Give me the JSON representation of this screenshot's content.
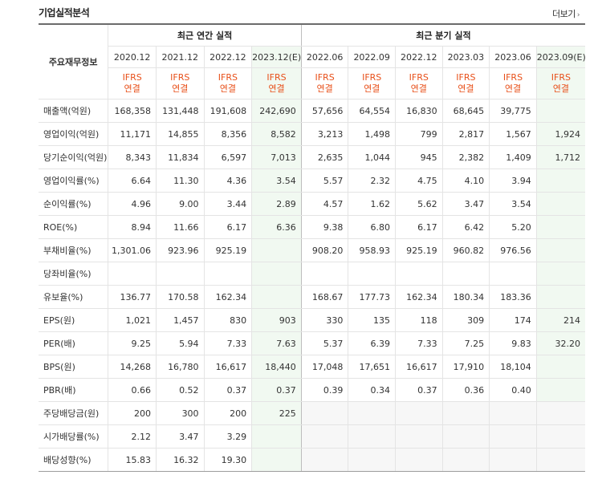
{
  "header": {
    "title": "기업실적분석",
    "more_label": "더보기"
  },
  "table": {
    "row_header": "주요재무정보",
    "annual_title": "최근 연간 실적",
    "quarter_title": "최근 분기 실적",
    "annual_periods": [
      "2020.12",
      "2021.12",
      "2022.12",
      "2023.12(E)"
    ],
    "quarter_periods": [
      "2022.06",
      "2022.09",
      "2022.12",
      "2023.03",
      "2023.06",
      "2023.09(E)"
    ],
    "ifrs_top": "IFRS",
    "ifrs_bottom": "연결",
    "rows": [
      {
        "label": "매출액(억원)",
        "values": [
          "168,358",
          "131,448",
          "191,608",
          "242,690",
          "57,656",
          "64,554",
          "16,830",
          "68,645",
          "39,775",
          ""
        ]
      },
      {
        "label": "영업이익(억원)",
        "values": [
          "11,171",
          "14,855",
          "8,356",
          "8,582",
          "3,213",
          "1,498",
          "799",
          "2,817",
          "1,567",
          "1,924"
        ]
      },
      {
        "label": "당기순이익(억원)",
        "values": [
          "8,343",
          "11,834",
          "6,597",
          "7,013",
          "2,635",
          "1,044",
          "945",
          "2,382",
          "1,409",
          "1,712"
        ]
      },
      {
        "label": "영업이익률(%)",
        "values": [
          "6.64",
          "11.30",
          "4.36",
          "3.54",
          "5.57",
          "2.32",
          "4.75",
          "4.10",
          "3.94",
          ""
        ]
      },
      {
        "label": "순이익률(%)",
        "values": [
          "4.96",
          "9.00",
          "3.44",
          "2.89",
          "4.57",
          "1.62",
          "5.62",
          "3.47",
          "3.54",
          ""
        ]
      },
      {
        "label": "ROE(%)",
        "values": [
          "8.94",
          "11.66",
          "6.17",
          "6.36",
          "9.38",
          "6.80",
          "6.17",
          "6.42",
          "5.20",
          ""
        ]
      },
      {
        "label": "부채비율(%)",
        "values": [
          "1,301.06",
          "923.96",
          "925.19",
          "",
          "908.20",
          "958.93",
          "925.19",
          "960.82",
          "976.56",
          ""
        ]
      },
      {
        "label": "당좌비율(%)",
        "values": [
          "",
          "",
          "",
          "",
          "",
          "",
          "",
          "",
          "",
          ""
        ]
      },
      {
        "label": "유보율(%)",
        "values": [
          "136.77",
          "170.58",
          "162.34",
          "",
          "168.67",
          "177.73",
          "162.34",
          "180.34",
          "183.36",
          ""
        ]
      },
      {
        "label": "EPS(원)",
        "values": [
          "1,021",
          "1,457",
          "830",
          "903",
          "330",
          "135",
          "118",
          "309",
          "174",
          "214"
        ]
      },
      {
        "label": "PER(배)",
        "values": [
          "9.25",
          "5.94",
          "7.33",
          "7.63",
          "5.37",
          "6.39",
          "7.33",
          "7.25",
          "9.83",
          "32.20"
        ]
      },
      {
        "label": "BPS(원)",
        "values": [
          "14,268",
          "16,780",
          "16,617",
          "18,440",
          "17,048",
          "17,651",
          "16,617",
          "17,910",
          "18,104",
          ""
        ]
      },
      {
        "label": "PBR(배)",
        "values": [
          "0.66",
          "0.52",
          "0.37",
          "0.37",
          "0.39",
          "0.34",
          "0.37",
          "0.36",
          "0.40",
          ""
        ]
      },
      {
        "label": "주당배당금(원)",
        "values": [
          "200",
          "300",
          "200",
          "225",
          "",
          "",
          "",
          "",
          "",
          ""
        ]
      },
      {
        "label": "시가배당률(%)",
        "values": [
          "2.12",
          "3.47",
          "3.29",
          "",
          "",
          "",
          "",
          "",
          "",
          ""
        ]
      },
      {
        "label": "배당성향(%)",
        "values": [
          "15.83",
          "16.32",
          "19.30",
          "",
          "",
          "",
          "",
          "",
          "",
          ""
        ]
      }
    ]
  }
}
